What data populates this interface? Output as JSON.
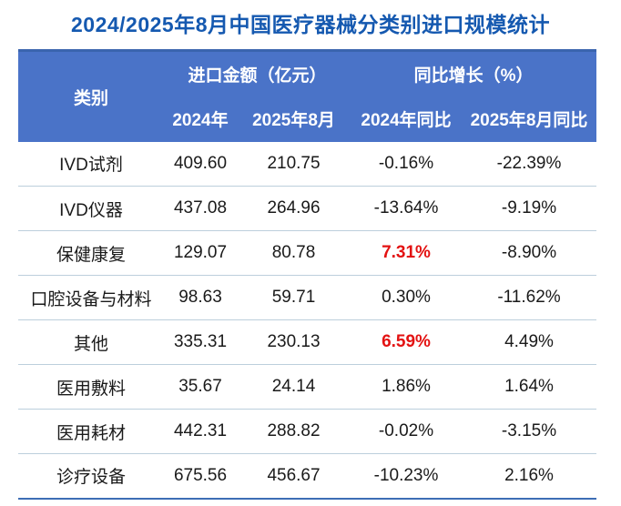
{
  "title": "2024/2025年8月中国医疗器械分类别进口规模统计",
  "colors": {
    "title_blue": "#1559B0",
    "header_background": "#4A73C8",
    "header_top_border": "#3A64AE",
    "row_divider": "#BCCFDC",
    "table_bottom_border": "#3D6EB5",
    "body_text": "#1A1A1A",
    "accent_red": "#E31212"
  },
  "chart_data": {
    "type": "table",
    "title": "2024/2025年8月中国医疗器械分类别进口规模统计",
    "headers": {
      "category": "类别",
      "group_import_amount": "进口金额（亿元）",
      "group_yoy_growth": "同比增长（%）",
      "sub_2024": "2024年",
      "sub_2025_aug": "2025年8月",
      "sub_yoy_2024": "2024年同比",
      "sub_yoy_2025_aug": "2025年8月同比"
    },
    "column_groups": [
      {
        "label": "类别",
        "columns": [
          "类别"
        ]
      },
      {
        "label": "进口金额（亿元）",
        "columns": [
          "2024年",
          "2025年8月"
        ]
      },
      {
        "label": "同比增长（%）",
        "columns": [
          "2024年同比",
          "2025年8月同比"
        ]
      }
    ],
    "rows": [
      {
        "category": "IVD试剂",
        "amount_2024": "409.60",
        "amount_2025_aug": "210.75",
        "yoy_2024": "-0.16%",
        "yoy_2025_aug": "-22.39%",
        "yoy_2024_highlight_red": false
      },
      {
        "category": "IVD仪器",
        "amount_2024": "437.08",
        "amount_2025_aug": "264.96",
        "yoy_2024": "-13.64%",
        "yoy_2025_aug": "-9.19%",
        "yoy_2024_highlight_red": false
      },
      {
        "category": "保健康复",
        "amount_2024": "129.07",
        "amount_2025_aug": "80.78",
        "yoy_2024": "7.31%",
        "yoy_2025_aug": "-8.90%",
        "yoy_2024_highlight_red": true
      },
      {
        "category": "口腔设备与材料",
        "amount_2024": "98.63",
        "amount_2025_aug": "59.71",
        "yoy_2024": "0.30%",
        "yoy_2025_aug": "-11.62%",
        "yoy_2024_highlight_red": false
      },
      {
        "category": "其他",
        "amount_2024": "335.31",
        "amount_2025_aug": "230.13",
        "yoy_2024": "6.59%",
        "yoy_2025_aug": "4.49%",
        "yoy_2024_highlight_red": true
      },
      {
        "category": "医用敷料",
        "amount_2024": "35.67",
        "amount_2025_aug": "24.14",
        "yoy_2024": "1.86%",
        "yoy_2025_aug": "1.64%",
        "yoy_2024_highlight_red": false
      },
      {
        "category": "医用耗材",
        "amount_2024": "442.31",
        "amount_2025_aug": "288.82",
        "yoy_2024": "-0.02%",
        "yoy_2025_aug": "-3.15%",
        "yoy_2024_highlight_red": false
      },
      {
        "category": "诊疗设备",
        "amount_2024": "675.56",
        "amount_2025_aug": "456.67",
        "yoy_2024": "-10.23%",
        "yoy_2025_aug": "2.16%",
        "yoy_2024_highlight_red": false
      }
    ],
    "highlighted_values_red": [
      {
        "category": "保健康复",
        "column": "2024年同比",
        "value": "7.31%"
      },
      {
        "category": "其他",
        "column": "2024年同比",
        "value": "6.59%"
      }
    ],
    "grid": "horizontal-dividers-only",
    "legend_position": "none"
  }
}
